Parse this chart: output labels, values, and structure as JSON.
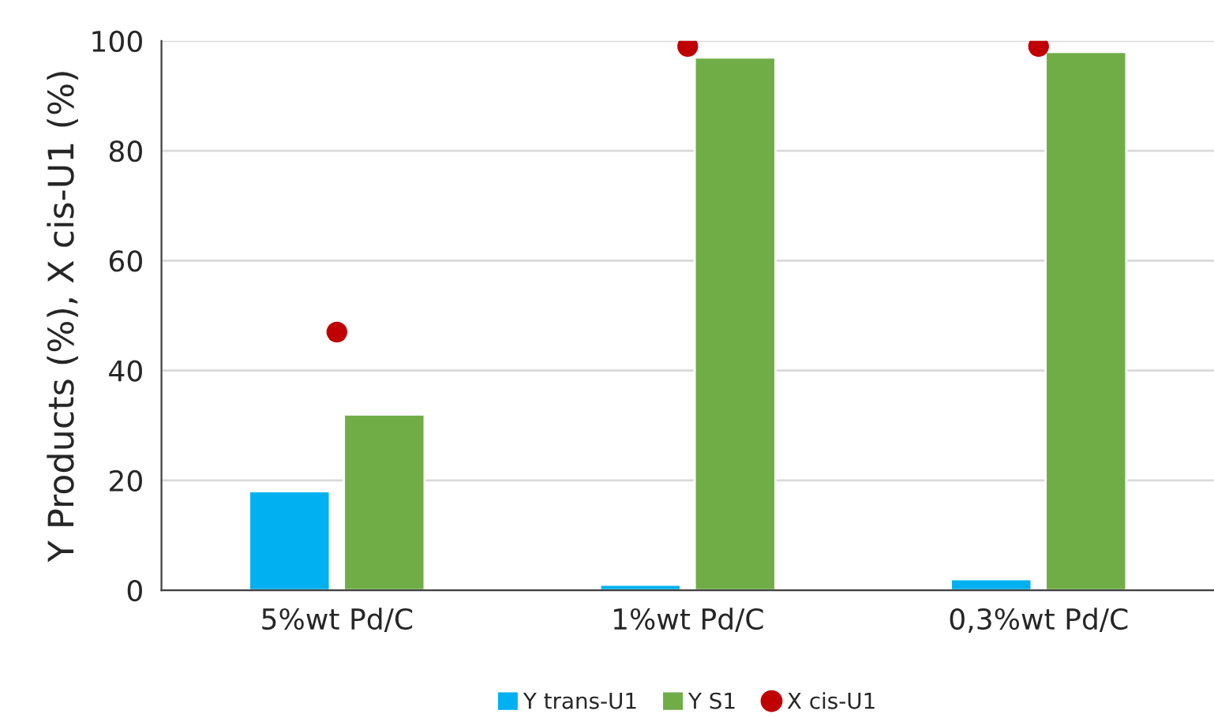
{
  "chart_data": {
    "type": "bar",
    "ylabel": "Y Products (%), X cis-U1 (%)",
    "categories": [
      "5%wt Pd/C",
      "1%wt Pd/C",
      "0,3%wt Pd/C"
    ],
    "series": [
      {
        "name": "Y trans-U1",
        "color": "#00b0f0",
        "values": [
          18,
          1,
          2
        ]
      },
      {
        "name": "Y S1",
        "color": "#70ad47",
        "values": [
          32,
          97,
          98
        ]
      },
      {
        "name": "X cis-U1",
        "color": "#c00000",
        "type": "scatter",
        "values": [
          47,
          99,
          99
        ]
      }
    ],
    "ylim": [
      0,
      100
    ],
    "yticks": [
      0,
      20,
      40,
      60,
      80,
      100
    ],
    "grid": "y",
    "legend": "bottom",
    "marker": "circle"
  }
}
